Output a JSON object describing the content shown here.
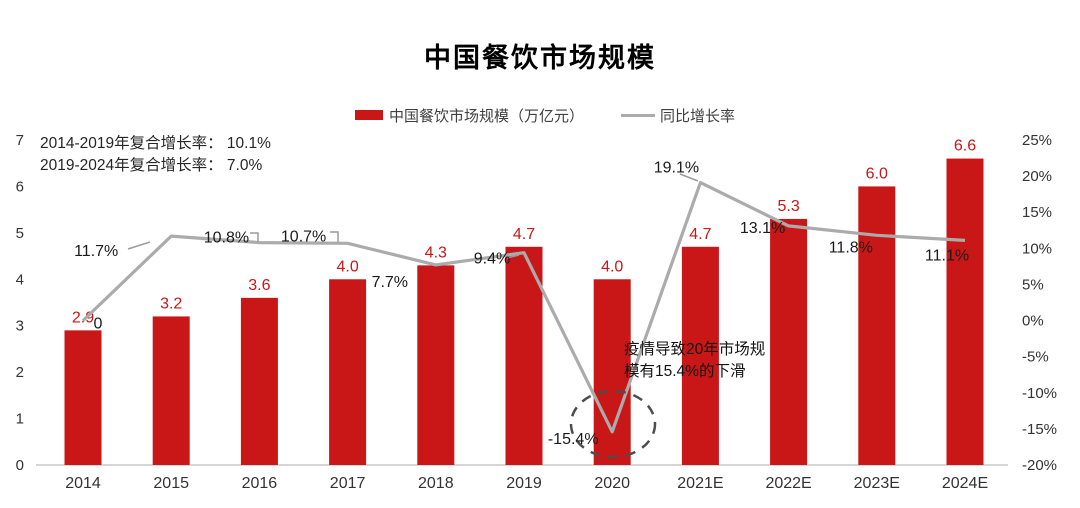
{
  "chart_data": {
    "type": "bar+line combo",
    "title": "中国餐饮市场规模",
    "grid": "off",
    "legend_position": "top",
    "categories": [
      "2014",
      "2015",
      "2016",
      "2017",
      "2018",
      "2019",
      "2020",
      "2021E",
      "2022E",
      "2023E",
      "2024E"
    ],
    "series": [
      {
        "name": "中国餐饮市场规模（万亿元）",
        "type": "bar",
        "unit": "万亿元",
        "color": "#C91617",
        "values": [
          2.9,
          3.2,
          3.6,
          4.0,
          4.3,
          4.7,
          4.0,
          4.7,
          5.3,
          6.0,
          6.6
        ],
        "labels": [
          "2.9",
          "3.2",
          "3.6",
          "4.0",
          "4.3",
          "4.7",
          "4.0",
          "4.7",
          "5.3",
          "6.0",
          "6.6"
        ]
      },
      {
        "name": "同比增长率",
        "type": "line",
        "unit": "%",
        "color": "#ABABAB",
        "values": [
          0,
          11.7,
          10.8,
          10.7,
          7.7,
          9.4,
          -15.4,
          19.1,
          13.1,
          11.8,
          11.1
        ],
        "labels": [
          "0",
          "11.7%",
          "10.8%",
          "10.7%",
          "7.7%",
          "9.4%",
          "-15.4%",
          "19.1%",
          "13.1%",
          "11.8%",
          "11.1%"
        ]
      }
    ],
    "left_axis": {
      "range": [
        0,
        7
      ],
      "ticks": [
        "7",
        "6",
        "5",
        "4",
        "3",
        "2",
        "1",
        "0"
      ]
    },
    "right_axis": {
      "range": [
        -20,
        25
      ],
      "ticks": [
        "25%",
        "20%",
        "15%",
        "10%",
        "5%",
        "0%",
        "-5%",
        "-10%",
        "-15%",
        "-20%"
      ]
    },
    "annotations": {
      "cagr_lines": [
        "2014-2019年复合增长率： 10.1%",
        "2019-2024年复合增长率： 7.0%"
      ],
      "covid_lines": [
        "疫情导致20年市场规",
        "模有15.4%的下滑"
      ],
      "covid_full_text": "疫情导致20年市场规模有15.4%的下滑",
      "circled_point": {
        "category": "2020",
        "value": "-15.4%"
      }
    }
  }
}
